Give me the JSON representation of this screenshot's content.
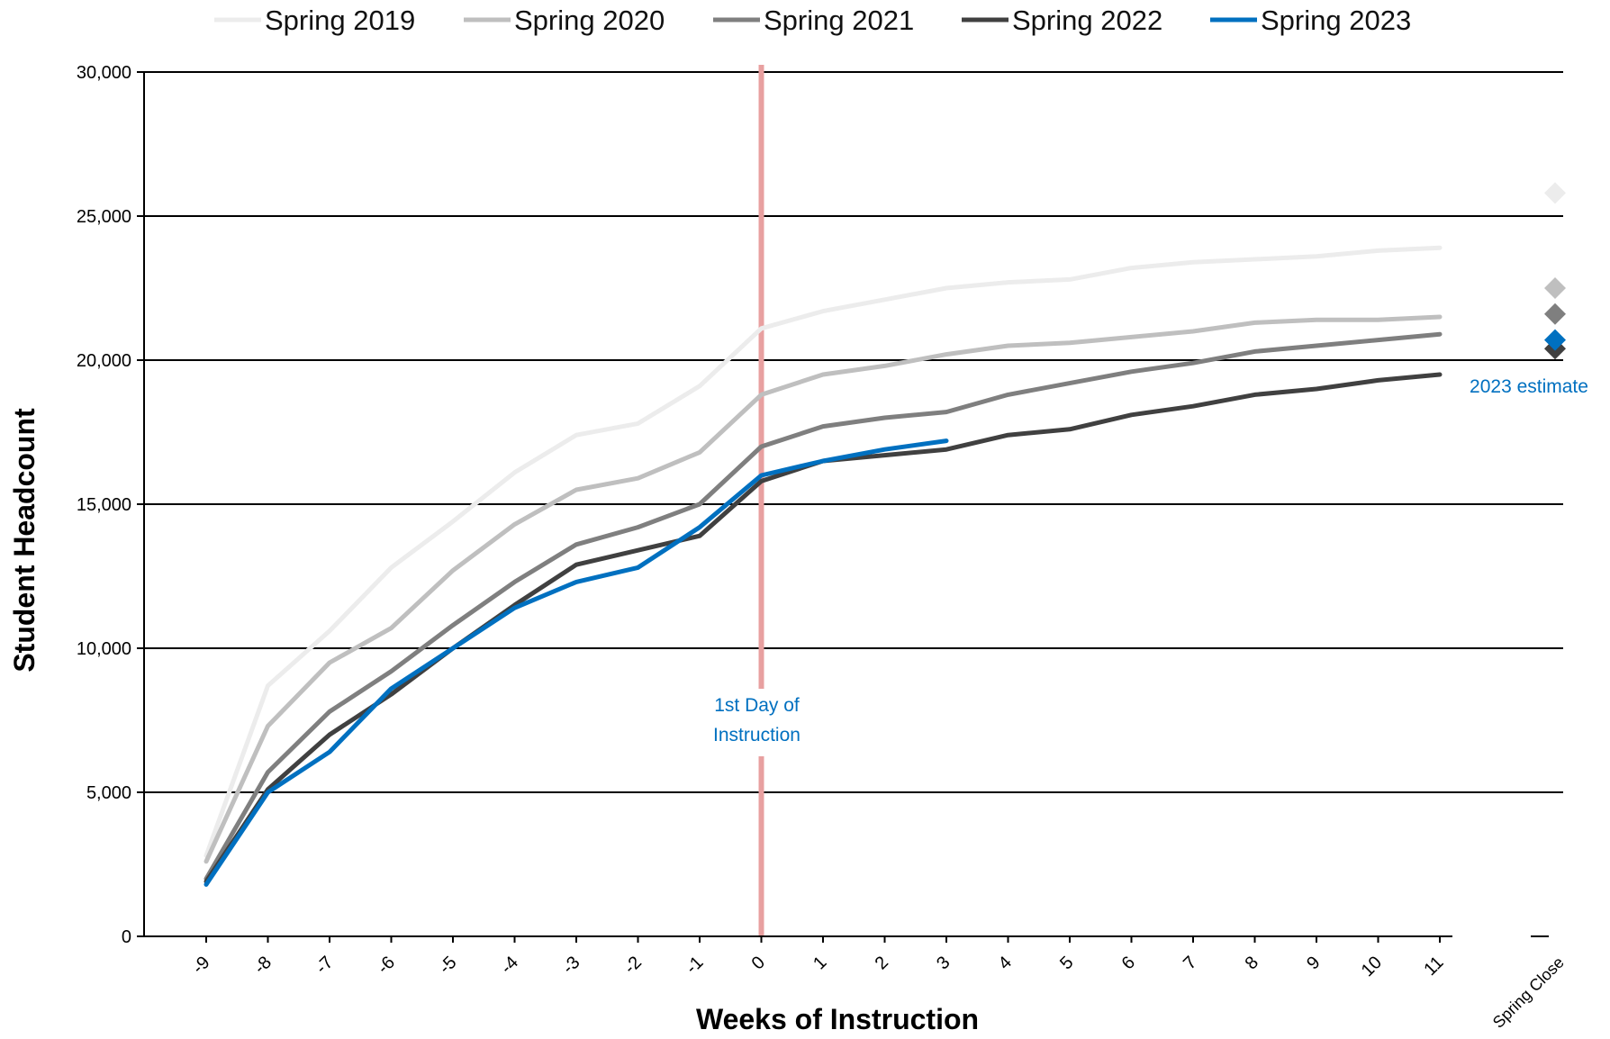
{
  "chart_data": {
    "type": "line",
    "xlabel": "Weeks of Instruction",
    "ylabel": "Student Headcount",
    "categories": [
      "-9",
      "-8",
      "-7",
      "-6",
      "-5",
      "-4",
      "-3",
      "-2",
      "-1",
      "0",
      "1",
      "2",
      "3",
      "4",
      "5",
      "6",
      "7",
      "8",
      "9",
      "10",
      "11"
    ],
    "extra_category": "Spring Close",
    "ylim": [
      0,
      30000
    ],
    "yticks": [
      0,
      5000,
      10000,
      15000,
      20000,
      25000,
      30000
    ],
    "ytick_labels": [
      "0",
      "5,000",
      "10,000",
      "15,000",
      "20,000",
      "25,000",
      "30,000"
    ],
    "grid": "horizontal",
    "legend_position": "top",
    "series": [
      {
        "name": "Spring 2019",
        "color": "#ececec",
        "values": [
          2800,
          8700,
          10600,
          12800,
          14400,
          16100,
          17400,
          17800,
          19100,
          21100,
          21700,
          22100,
          22500,
          22700,
          22800,
          23200,
          23400,
          23500,
          23600,
          23800,
          23900
        ],
        "close": 25800
      },
      {
        "name": "Spring 2020",
        "color": "#bfbfbf",
        "values": [
          2600,
          7300,
          9500,
          10700,
          12700,
          14300,
          15500,
          15900,
          16800,
          18800,
          19500,
          19800,
          20200,
          20500,
          20600,
          20800,
          21000,
          21300,
          21400,
          21400,
          21500
        ],
        "close": 22500
      },
      {
        "name": "Spring 2021",
        "color": "#7f7f7f",
        "values": [
          2000,
          5700,
          7800,
          9200,
          10800,
          12300,
          13600,
          14200,
          15000,
          17000,
          17700,
          18000,
          18200,
          18800,
          19200,
          19600,
          19900,
          20300,
          20500,
          20700,
          20900
        ],
        "close": 21600
      },
      {
        "name": "Spring 2022",
        "color": "#404040",
        "values": [
          1900,
          5100,
          7000,
          8400,
          10000,
          11500,
          12900,
          13400,
          13900,
          15800,
          16500,
          16700,
          16900,
          17400,
          17600,
          18100,
          18400,
          18800,
          19000,
          19300,
          19500
        ],
        "close": 20400
      },
      {
        "name": "Spring 2023",
        "color": "#0070c0",
        "values": [
          1800,
          5000,
          6400,
          8600,
          10000,
          11400,
          12300,
          12800,
          14200,
          16000,
          16500,
          16900,
          17200,
          null,
          null,
          null,
          null,
          null,
          null,
          null,
          null
        ],
        "close": 20700
      }
    ],
    "annotations": [
      {
        "text": "1st Day of",
        "x_category": "0"
      },
      {
        "text": "Instruction",
        "x_category": "0"
      },
      {
        "text": "2023 estimate",
        "x_category": "Spring Close"
      }
    ],
    "reference_line": {
      "x_category": "0",
      "color": "#e8a0a0"
    }
  }
}
